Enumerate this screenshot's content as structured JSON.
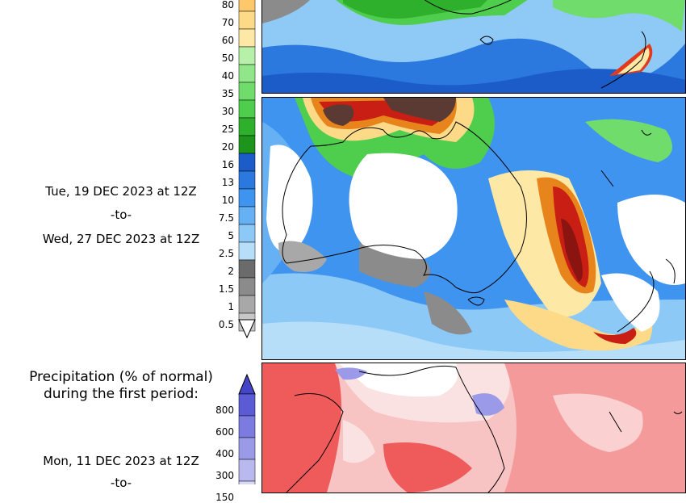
{
  "precip_totals_legend": {
    "tick_labels": [
      "80",
      "70",
      "60",
      "50",
      "40",
      "35",
      "30",
      "25",
      "20",
      "16",
      "13",
      "10",
      "7.5",
      "5",
      "2.5",
      "2",
      "1.5",
      "1",
      "0.5"
    ],
    "colors": [
      "#fdc76b",
      "#fdda87",
      "#fde8a5",
      "#b7f0a8",
      "#92e68a",
      "#70dc6c",
      "#4ece4c",
      "#2eb02c",
      "#1d941b",
      "#1c5cc8",
      "#2b79df",
      "#3f94ef",
      "#66b0f4",
      "#8dc9f7",
      "#b6def9",
      "#6b6b6b",
      "#8b8b8b",
      "#a8a8a8",
      "#c7c7c7"
    ]
  },
  "second_period": {
    "start": "Tue, 19 DEC 2023 at 12Z",
    "separator": "-to-",
    "end": "Wed, 27 DEC 2023 at 12Z"
  },
  "percent_section": {
    "title_line1": "Precipitation (% of normal)",
    "title_line2": "during the first period:",
    "tick_labels": [
      "800",
      "600",
      "400",
      "300",
      "150"
    ],
    "colors": [
      "#5b5bd6",
      "#7b7be0",
      "#9a9ae8",
      "#b9b9ef",
      "#d8d8f7",
      "#ececfb"
    ]
  },
  "first_period": {
    "start": "Mon, 11 DEC 2023 at 12Z",
    "separator": "-to-"
  },
  "maps": {
    "top_panel": "precipitation-totals-map-period-1",
    "middle_panel": "precipitation-totals-map-period-2",
    "bottom_panel": "precipitation-percent-normal-map-period-1"
  }
}
